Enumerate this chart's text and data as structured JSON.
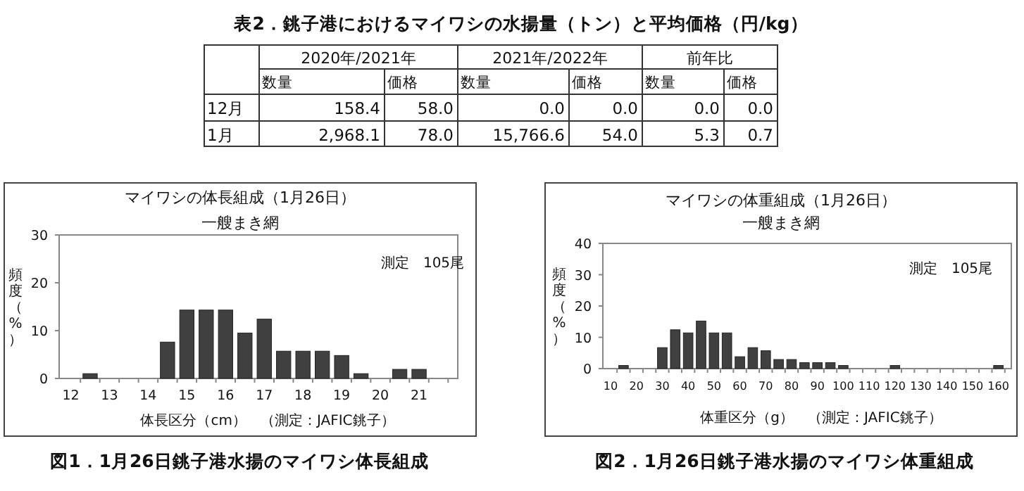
{
  "chart_data": [
    {
      "type": "other",
      "title": "表2．銚子港におけるマイワシの水揚量（トン）と平均価格（円/kg）",
      "annotations": [
        "2020年/2021年",
        "2021年/2022年",
        "前年比"
      ],
      "categories": [
        "数量",
        "価格",
        "数量",
        "価格",
        "数量",
        "価格"
      ],
      "y_categories": [
        "12月",
        "1月"
      ],
      "cell_labels": [
        [
          "158.4",
          "58.0",
          "0.0",
          "0.0",
          "0.0",
          "0.0"
        ],
        [
          "2,968.1",
          "78.0",
          "15,766.6",
          "54.0",
          "5.3",
          "0.7"
        ]
      ]
    },
    {
      "type": "bar",
      "title": "マイワシの体長組成（1月26日）",
      "subtitle": "一艘まき網",
      "xlabel": "体長区分（cm）　（測定：JAFIC銚子）",
      "ylabel": "頻度（%）",
      "annotations": [
        "測定　105尾",
        "図1．1月26日銚子港水揚のマイワシ体長組成"
      ],
      "categories": [
        "12",
        null,
        "13",
        null,
        "14",
        null,
        "15",
        null,
        "16",
        null,
        "17",
        null,
        "18",
        null,
        "19",
        null,
        "20",
        null,
        "21",
        null
      ],
      "values": [
        0,
        1,
        0,
        0,
        0,
        7.6,
        14.3,
        14.3,
        14.3,
        9.5,
        12.4,
        5.7,
        5.7,
        5.7,
        4.8,
        1,
        0,
        1.9,
        1.9,
        0
      ],
      "color": "#404040",
      "ylim": [
        0,
        30
      ],
      "yticks": [
        0,
        10,
        20,
        30
      ],
      "grid": false
    },
    {
      "type": "bar",
      "title": "マイワシの体重組成（1月26日）",
      "subtitle": "一艘まき網",
      "xlabel": "体重区分（g）　（測定：JAFIC銚子）",
      "ylabel": "頻度（%）",
      "annotations": [
        "測定　105尾",
        "図2．1月26日銚子港水揚のマイワシ体重組成"
      ],
      "categories": [
        "10",
        null,
        "20",
        null,
        "30",
        null,
        "40",
        null,
        "50",
        null,
        "60",
        null,
        "70",
        null,
        "80",
        null,
        "90",
        null,
        "100",
        null,
        "110",
        null,
        "120",
        null,
        "130",
        null,
        "140",
        null,
        "150",
        null,
        "160"
      ],
      "values": [
        0,
        1,
        0,
        0,
        6.7,
        12.4,
        11.4,
        15.2,
        11.4,
        11.4,
        3.8,
        6.7,
        5.7,
        2.9,
        2.9,
        1.9,
        1.9,
        1.9,
        1,
        0,
        0,
        0,
        1,
        0,
        0,
        0,
        0,
        0,
        0,
        0,
        1
      ],
      "color": "#404040",
      "ylim": [
        0,
        40
      ],
      "yticks": [
        0,
        10,
        20,
        30,
        40
      ],
      "grid": false
    }
  ]
}
